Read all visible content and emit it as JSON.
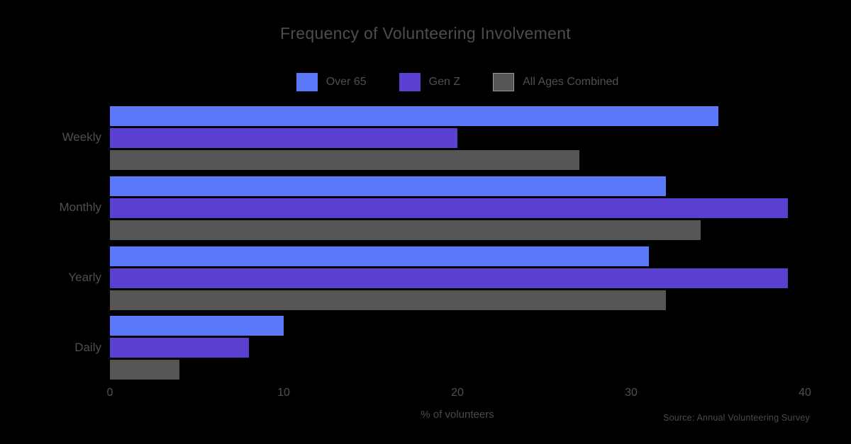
{
  "title": "Frequency of Volunteering Involvement",
  "colors": {
    "background": "#000000",
    "text": "#4d4d4d",
    "series_over_65": "#5b78f8",
    "series_gen_z": "#5b3fd1",
    "series_all_ages": "#555555"
  },
  "legend": {
    "items": [
      {
        "label": "Over 65",
        "color": "#5b78f8",
        "outlined": false
      },
      {
        "label": "Gen Z",
        "color": "#5b3fd1",
        "outlined": false
      },
      {
        "label": "All Ages Combined",
        "color": "#555555",
        "outlined": true
      }
    ]
  },
  "x_axis": {
    "label": "% of volunteers",
    "ticks": [
      "0",
      "10",
      "20",
      "30",
      "40"
    ]
  },
  "y_axis": {
    "categories": [
      "Weekly",
      "Monthly",
      "Yearly",
      "Daily"
    ]
  },
  "attribution": "Source: Annual Volunteering Survey",
  "chart_data": {
    "type": "bar",
    "orientation": "horizontal",
    "title": "Frequency of Volunteering Involvement",
    "xlabel": "% of volunteers",
    "ylabel": "",
    "xlim": [
      0,
      40
    ],
    "grid": false,
    "legend_position": "top",
    "categories": [
      "Weekly",
      "Monthly",
      "Yearly",
      "Daily"
    ],
    "series": [
      {
        "name": "Over 65",
        "color": "#5b78f8",
        "values": [
          35,
          32,
          31,
          10
        ]
      },
      {
        "name": "Gen Z",
        "color": "#5b3fd1",
        "values": [
          20,
          39,
          39,
          8
        ]
      },
      {
        "name": "All Ages Combined",
        "color": "#555555",
        "values": [
          27,
          34,
          32,
          4
        ]
      }
    ]
  }
}
